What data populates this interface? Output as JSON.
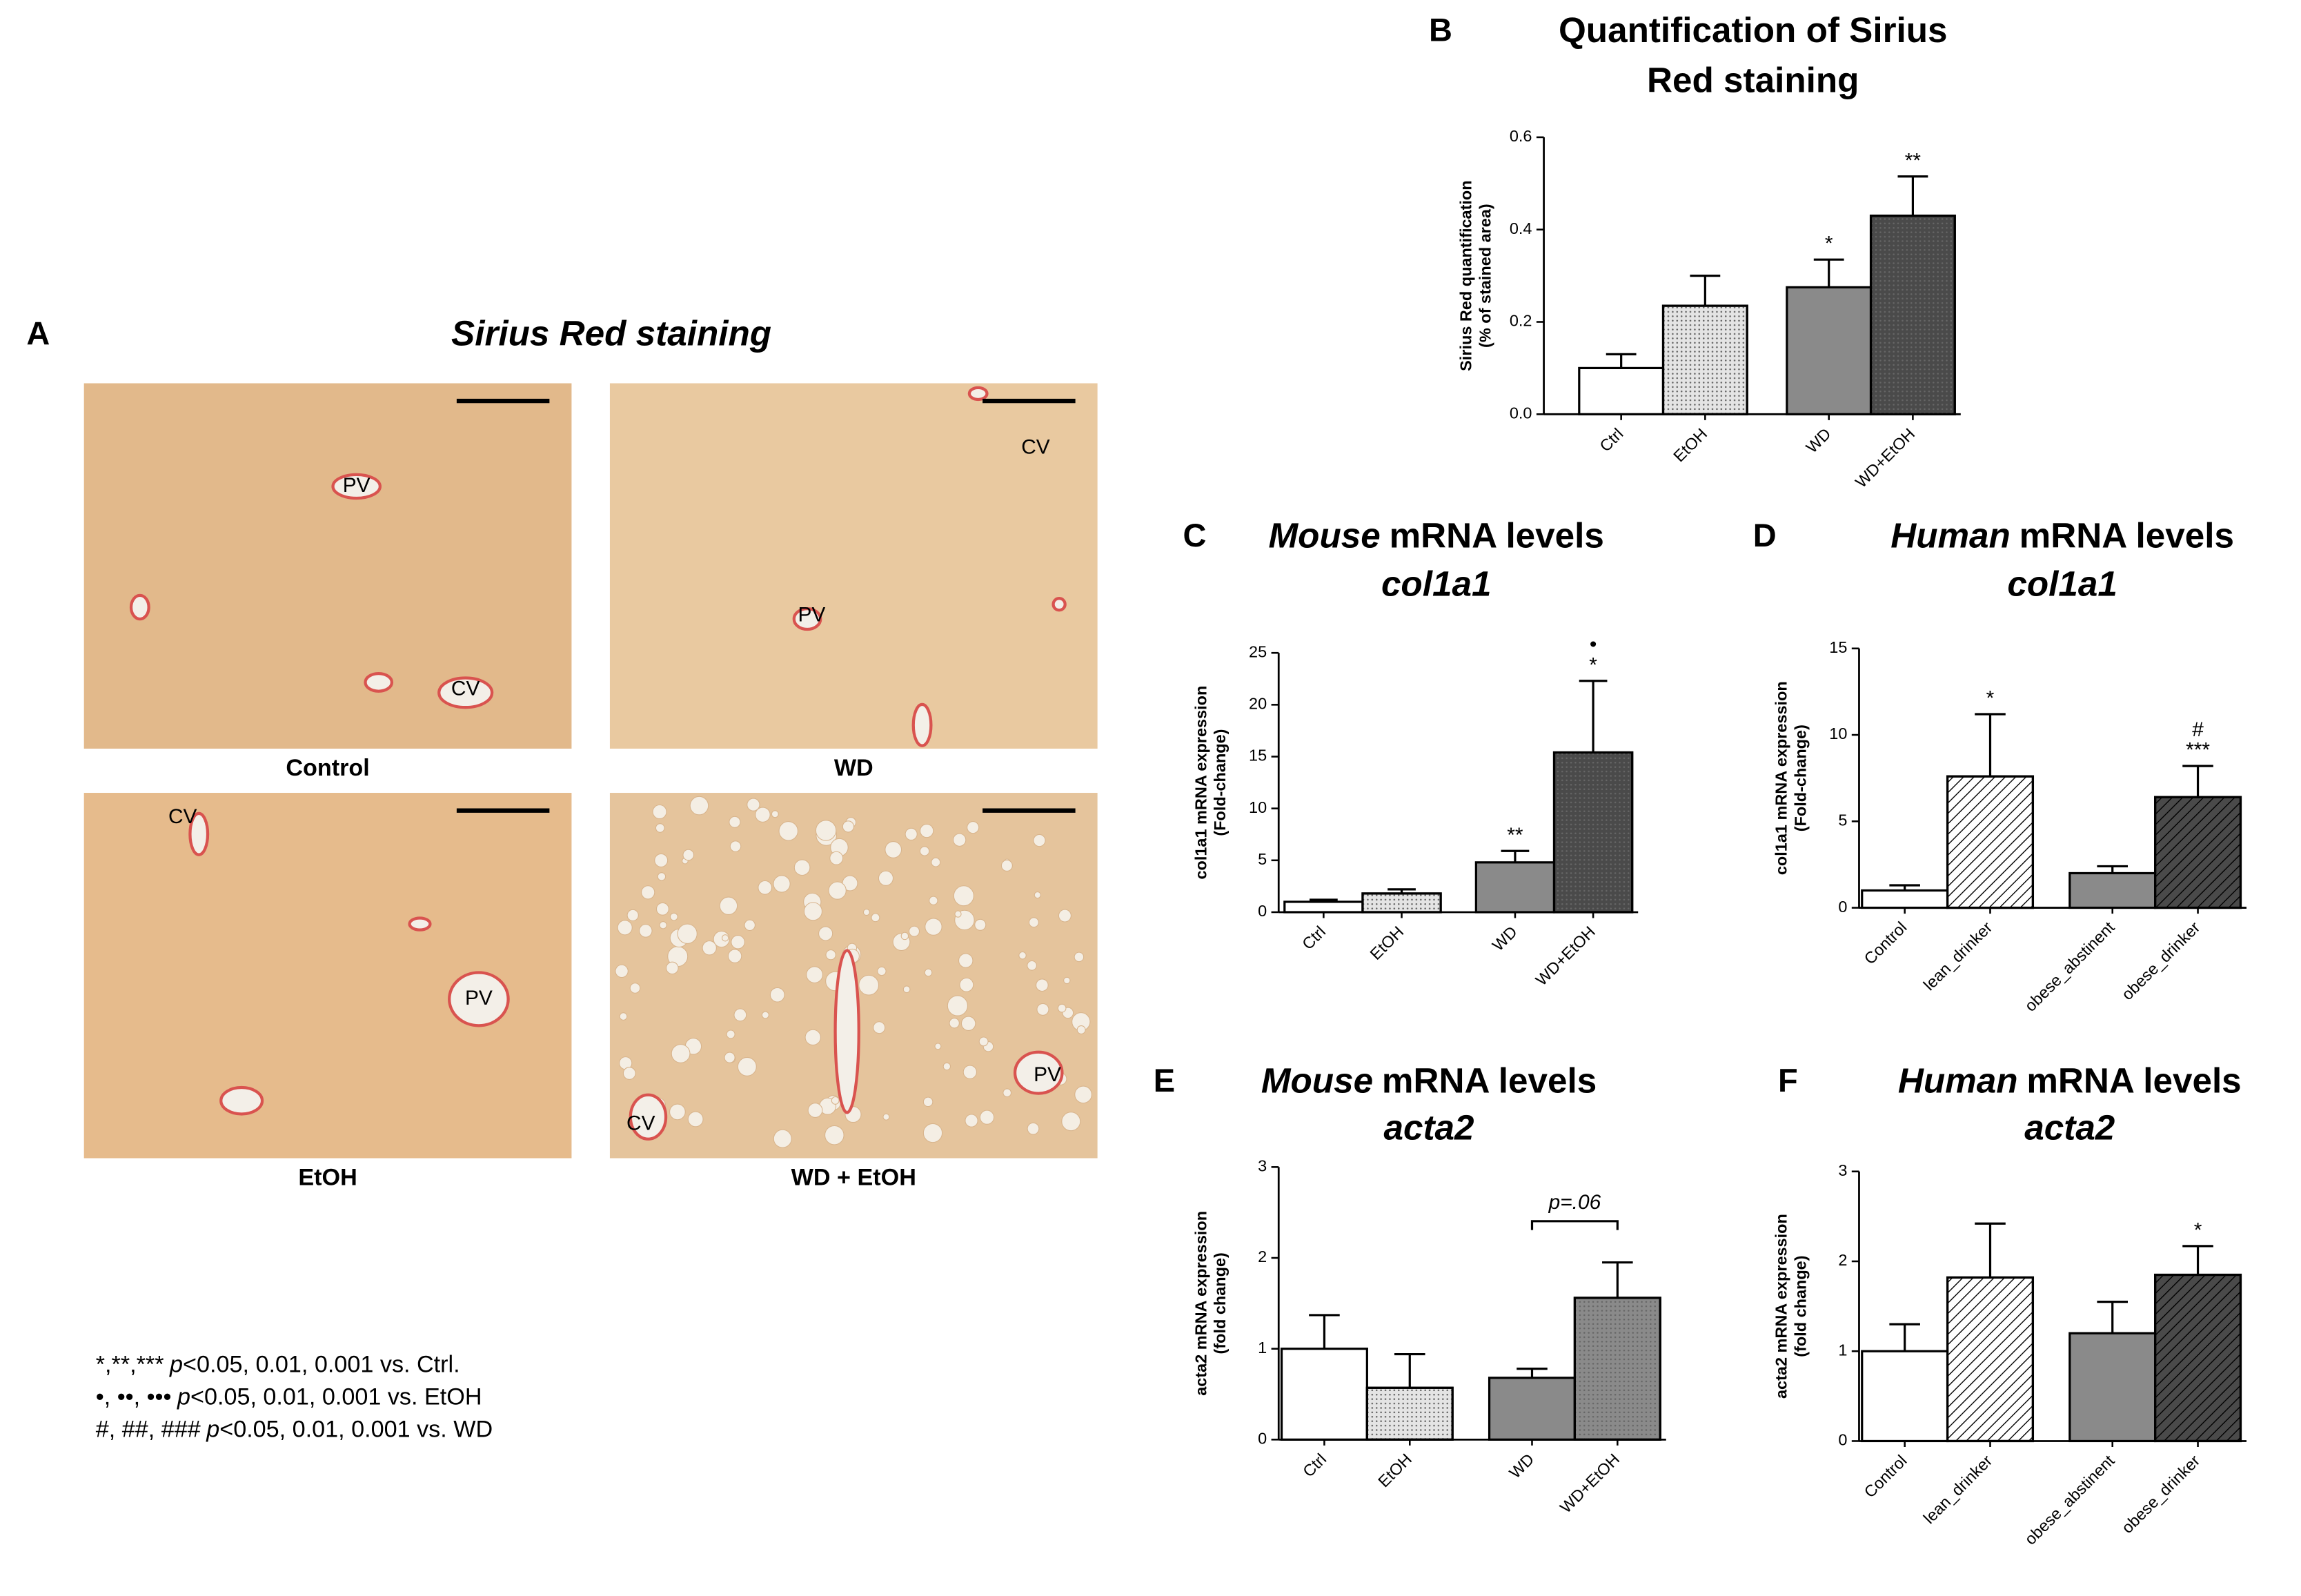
{
  "panel_a": {
    "letter": "A",
    "title": "Sirius Red staining",
    "images": [
      {
        "caption": "Control",
        "labels": [
          "PV",
          "CV"
        ]
      },
      {
        "caption": "WD",
        "labels": [
          "CV",
          "PV"
        ]
      },
      {
        "caption": "EtOH",
        "labels": [
          "CV",
          "PV"
        ]
      },
      {
        "caption": "WD + EtOH",
        "labels": [
          "CV",
          "PV"
        ]
      }
    ]
  },
  "footnote": [
    {
      "symbols": "*,**,***",
      "p": "p",
      "text": "<0.05, 0.01, 0.001 vs. Ctrl."
    },
    {
      "symbols": "•, ••, •••",
      "p": "p",
      "text": "<0.05, 0.01, 0.001 vs. EtOH"
    },
    {
      "symbols": "#, ##, ###",
      "p": "p",
      "text": "<0.05, 0.01, 0.001 vs. WD"
    }
  ],
  "chart_data": [
    {
      "letter": "B",
      "type": "bar",
      "title": [
        "Quantification of Sirius",
        "Red staining"
      ],
      "ylabel": [
        "Sirius Red quantification",
        "(% of stained area)"
      ],
      "categories": [
        "Ctrl",
        "EtOH",
        "WD",
        "WD+EtOH"
      ],
      "values": [
        0.1,
        0.235,
        0.275,
        0.43
      ],
      "errors": [
        0.03,
        0.065,
        0.06,
        0.085
      ],
      "fills": [
        "#ffffff",
        "#e4e4e4",
        "#8a8a8a",
        "#4a4a4a"
      ],
      "patterns": [
        "none",
        "dots",
        "none",
        "dots"
      ],
      "ylim": [
        0,
        0.6
      ],
      "yticks": [
        {
          "value": 0,
          "label": "0.0"
        },
        0.2,
        0.4,
        0.6
      ],
      "annotations": [
        null,
        null,
        [
          "*"
        ],
        [
          "**"
        ]
      ]
    },
    {
      "letter": "C",
      "type": "bar",
      "title_species": "Mouse",
      "title": "mRNA levels",
      "gene": "col1a1",
      "ylabel": [
        "col1a1 mRNA expression",
        "(Fold-change)"
      ],
      "categories": [
        "Ctrl",
        "EtOH",
        "WD",
        "WD+EtOH"
      ],
      "values": [
        1.0,
        1.8,
        4.8,
        15.4
      ],
      "errors": [
        0.2,
        0.4,
        1.1,
        6.9
      ],
      "fills": [
        "#ffffff",
        "#e4e4e4",
        "#8a8a8a",
        "#4a4a4a"
      ],
      "patterns": [
        "none",
        "dots",
        "none",
        "dots"
      ],
      "ylim": [
        0,
        25
      ],
      "yticks": [
        0,
        5,
        10,
        15,
        20,
        25
      ],
      "annotations": [
        null,
        null,
        [
          "**"
        ],
        [
          "•",
          "*"
        ]
      ]
    },
    {
      "letter": "D",
      "type": "bar",
      "title_species": "Human",
      "title": "mRNA levels",
      "gene": "col1a1",
      "ylabel": [
        "col1a1 mRNA expression",
        "(Fold-change)"
      ],
      "categories": [
        "Control",
        "lean_drinker",
        "obese_abstinent",
        "obese_drinker"
      ],
      "values": [
        1.0,
        7.6,
        2.0,
        6.4
      ],
      "errors": [
        0.3,
        3.6,
        0.4,
        1.8
      ],
      "fills": [
        "#ffffff",
        "#ffffff",
        "#8a8a8a",
        "#4a4a4a"
      ],
      "patterns": [
        "none",
        "hatch",
        "none",
        "hatch"
      ],
      "ylim": [
        0,
        15
      ],
      "yticks": [
        0,
        5,
        10,
        15
      ],
      "annotations": [
        null,
        [
          "*"
        ],
        null,
        [
          "#",
          "***"
        ]
      ]
    },
    {
      "letter": "E",
      "type": "bar",
      "title_species": "Mouse",
      "title": "mRNA levels",
      "gene": "acta2",
      "ylabel": [
        "acta2 mRNA expression",
        "(fold change)"
      ],
      "categories": [
        "Ctrl",
        "EtOH",
        "WD",
        "WD+EtOH"
      ],
      "values": [
        1.0,
        0.57,
        0.68,
        1.56
      ],
      "errors": [
        0.37,
        0.37,
        0.1,
        0.39
      ],
      "fills": [
        "#ffffff",
        "#e4e4e4",
        "#8a8a8a",
        "#8a8a8a"
      ],
      "patterns": [
        "none",
        "dots",
        "none",
        "dots"
      ],
      "ylim": [
        0,
        3
      ],
      "yticks": [
        0,
        1,
        2,
        3
      ],
      "bracket": {
        "label": "p=.06",
        "categories": [
          "WD",
          "WD+EtOH"
        ]
      }
    },
    {
      "letter": "F",
      "type": "bar",
      "title_species": "Human",
      "title": "mRNA levels",
      "gene": "acta2",
      "ylabel": [
        "acta2 mRNA expression",
        "(fold change)"
      ],
      "categories": [
        "Control",
        "lean_drinker",
        "obese_abstinent",
        "obese_drinker"
      ],
      "values": [
        1.0,
        1.82,
        1.2,
        1.85
      ],
      "errors": [
        0.3,
        0.6,
        0.35,
        0.32
      ],
      "fills": [
        "#ffffff",
        "#ffffff",
        "#8a8a8a",
        "#4a4a4a"
      ],
      "patterns": [
        "none",
        "hatch",
        "none",
        "hatch"
      ],
      "ylim": [
        0,
        3
      ],
      "yticks": [
        0,
        1,
        2,
        3
      ],
      "annotations": [
        null,
        null,
        null,
        [
          "*"
        ]
      ]
    }
  ]
}
